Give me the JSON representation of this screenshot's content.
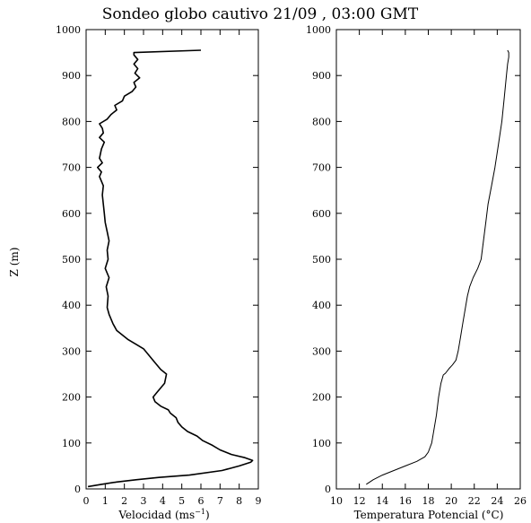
{
  "title": "Sondeo globo cautivo 21/09 , 03:00 GMT",
  "ylabel": "Z (m)",
  "chart_data": [
    {
      "type": "line",
      "xlabel_main": "Velocidad (ms",
      "xlabel_sup": "−1",
      "xlabel_tail": ")",
      "xlim": [
        0,
        9
      ],
      "ylim": [
        0,
        1000
      ],
      "xticks": [
        "0",
        "1",
        "2",
        "3",
        "4",
        "5",
        "6",
        "7",
        "8",
        "9"
      ],
      "yticks": [
        "0",
        "100",
        "200",
        "300",
        "400",
        "500",
        "600",
        "700",
        "800",
        "900",
        "1000"
      ],
      "grid": false,
      "series": [
        {
          "x": [
            0.1,
            0.8,
            1.6,
            2.6,
            3.8,
            5.4,
            7.1,
            8.0,
            8.6,
            8.7,
            8.3,
            7.6,
            7.0,
            6.6,
            6.1,
            5.8,
            5.3,
            5.0,
            4.8,
            4.7,
            4.4,
            4.3,
            3.9,
            3.6,
            3.5,
            3.7,
            3.9,
            4.1,
            4.2,
            3.9,
            3.6,
            3.3,
            3.0,
            2.6,
            2.2,
            1.9,
            1.6,
            1.4,
            1.2,
            1.1,
            1.15,
            1.05,
            1.2,
            1.0,
            1.15,
            1.1,
            1.2,
            1.1,
            1.0,
            0.95,
            0.9,
            0.85,
            0.9,
            0.7,
            0.8,
            0.6,
            0.85,
            0.7,
            0.8,
            0.95,
            0.7,
            0.9,
            0.85,
            0.7,
            1.1,
            1.3,
            1.6,
            1.5,
            1.9,
            2.0,
            2.4,
            2.6,
            2.5,
            2.8,
            2.55,
            2.7,
            2.5,
            2.7,
            2.5,
            2.5,
            6.0
          ],
          "y": [
            5,
            10,
            15,
            20,
            25,
            30,
            40,
            50,
            58,
            62,
            68,
            75,
            85,
            95,
            105,
            115,
            125,
            135,
            145,
            155,
            165,
            172,
            180,
            190,
            200,
            210,
            220,
            230,
            250,
            260,
            275,
            290,
            305,
            315,
            325,
            335,
            345,
            360,
            380,
            395,
            420,
            440,
            460,
            480,
            500,
            520,
            540,
            560,
            580,
            600,
            620,
            640,
            660,
            680,
            690,
            700,
            710,
            720,
            740,
            755,
            765,
            775,
            785,
            795,
            805,
            815,
            825,
            835,
            845,
            855,
            865,
            875,
            885,
            895,
            905,
            915,
            925,
            935,
            945,
            950,
            955
          ]
        }
      ]
    },
    {
      "type": "line",
      "xlabel_main": "Temperatura Potencial (°C)",
      "xlim": [
        10,
        26
      ],
      "ylim": [
        0,
        1000
      ],
      "xticks": [
        "10",
        "12",
        "14",
        "16",
        "18",
        "20",
        "22",
        "24",
        "26"
      ],
      "yticks": [
        "0",
        "100",
        "200",
        "300",
        "400",
        "500",
        "600",
        "700",
        "800",
        "900",
        "1000"
      ],
      "grid": false,
      "series": [
        {
          "x": [
            12.6,
            13.2,
            14.0,
            15.0,
            16.0,
            17.0,
            17.7,
            18.0,
            18.3,
            18.5,
            18.7,
            18.9,
            19.1,
            19.3,
            19.5,
            19.8,
            20.1,
            20.4,
            20.6,
            20.8,
            21.0,
            21.2,
            21.4,
            21.6,
            21.9,
            22.3,
            22.6,
            22.8,
            23.0,
            23.2,
            23.5,
            23.8,
            24.1,
            24.4,
            24.6,
            24.8,
            24.9,
            25.0,
            25.0,
            24.9
          ],
          "y": [
            10,
            20,
            30,
            40,
            50,
            60,
            70,
            80,
            100,
            130,
            160,
            200,
            230,
            248,
            252,
            262,
            270,
            280,
            300,
            330,
            360,
            390,
            420,
            440,
            460,
            480,
            500,
            540,
            580,
            620,
            660,
            700,
            750,
            800,
            850,
            900,
            925,
            940,
            950,
            955
          ]
        }
      ]
    }
  ]
}
